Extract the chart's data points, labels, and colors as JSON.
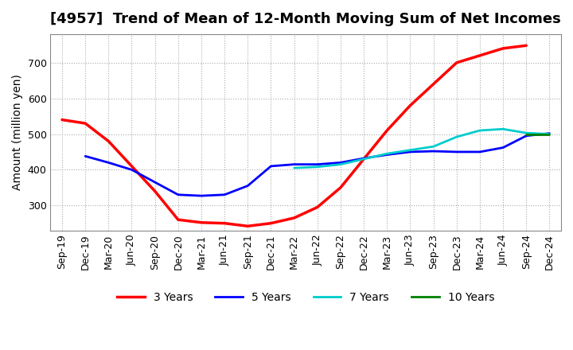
{
  "title": "[4957]  Trend of Mean of 12-Month Moving Sum of Net Incomes",
  "ylabel": "Amount (million yen)",
  "background_color": "#ffffff",
  "grid_color": "#aaaaaa",
  "title_fontsize": 13,
  "label_fontsize": 10,
  "tick_fontsize": 9,
  "ylim": [
    230,
    780
  ],
  "yticks": [
    300,
    400,
    500,
    600,
    700
  ],
  "series": {
    "3 Years": {
      "color": "#ff0000",
      "data": [
        [
          "Sep-19",
          540
        ],
        [
          "Dec-19",
          530
        ],
        [
          "Mar-20",
          480
        ],
        [
          "Jun-20",
          410
        ],
        [
          "Sep-20",
          340
        ],
        [
          "Dec-20",
          260
        ],
        [
          "Mar-21",
          252
        ],
        [
          "Jun-21",
          250
        ],
        [
          "Sep-21",
          242
        ],
        [
          "Dec-21",
          250
        ],
        [
          "Mar-22",
          265
        ],
        [
          "Jun-22",
          295
        ],
        [
          "Sep-22",
          350
        ],
        [
          "Dec-22",
          430
        ],
        [
          "Mar-23",
          510
        ],
        [
          "Jun-23",
          580
        ],
        [
          "Sep-23",
          640
        ],
        [
          "Dec-23",
          700
        ],
        [
          "Mar-24",
          720
        ],
        [
          "Jun-24",
          740
        ],
        [
          "Sep-24",
          748
        ]
      ]
    },
    "5 Years": {
      "color": "#0000ff",
      "data": [
        [
          "Dec-19",
          438
        ],
        [
          "Mar-20",
          420
        ],
        [
          "Jun-20",
          400
        ],
        [
          "Sep-20",
          365
        ],
        [
          "Dec-20",
          330
        ],
        [
          "Mar-21",
          327
        ],
        [
          "Jun-21",
          330
        ],
        [
          "Sep-21",
          355
        ],
        [
          "Dec-21",
          410
        ],
        [
          "Mar-22",
          415
        ],
        [
          "Jun-22",
          415
        ],
        [
          "Sep-22",
          420
        ],
        [
          "Dec-22",
          432
        ],
        [
          "Mar-23",
          442
        ],
        [
          "Jun-23",
          450
        ],
        [
          "Sep-23",
          452
        ],
        [
          "Dec-23",
          450
        ],
        [
          "Mar-24",
          450
        ],
        [
          "Jun-24",
          462
        ],
        [
          "Sep-24",
          495
        ],
        [
          "Dec-24",
          502
        ]
      ]
    },
    "7 Years": {
      "color": "#00cccc",
      "data": [
        [
          "Mar-22",
          405
        ],
        [
          "Jun-22",
          408
        ],
        [
          "Sep-22",
          415
        ],
        [
          "Dec-22",
          430
        ],
        [
          "Mar-23",
          445
        ],
        [
          "Jun-23",
          455
        ],
        [
          "Sep-23",
          465
        ],
        [
          "Dec-23",
          492
        ],
        [
          "Mar-24",
          510
        ],
        [
          "Jun-24",
          514
        ],
        [
          "Sep-24",
          503
        ],
        [
          "Dec-24",
          500
        ]
      ]
    },
    "10 Years": {
      "color": "#008000",
      "data": [
        [
          "Sep-24",
          500
        ],
        [
          "Dec-24",
          500
        ]
      ]
    }
  },
  "legend_entries": [
    "3 Years",
    "5 Years",
    "7 Years",
    "10 Years"
  ],
  "legend_colors": [
    "#ff0000",
    "#0000ff",
    "#00cccc",
    "#008000"
  ],
  "x_tick_labels": [
    "Sep-19",
    "Dec-19",
    "Mar-20",
    "Jun-20",
    "Sep-20",
    "Dec-20",
    "Mar-21",
    "Jun-21",
    "Sep-21",
    "Dec-21",
    "Mar-22",
    "Jun-22",
    "Sep-22",
    "Dec-22",
    "Mar-23",
    "Jun-23",
    "Sep-23",
    "Dec-23",
    "Mar-24",
    "Jun-24",
    "Sep-24",
    "Dec-24"
  ]
}
